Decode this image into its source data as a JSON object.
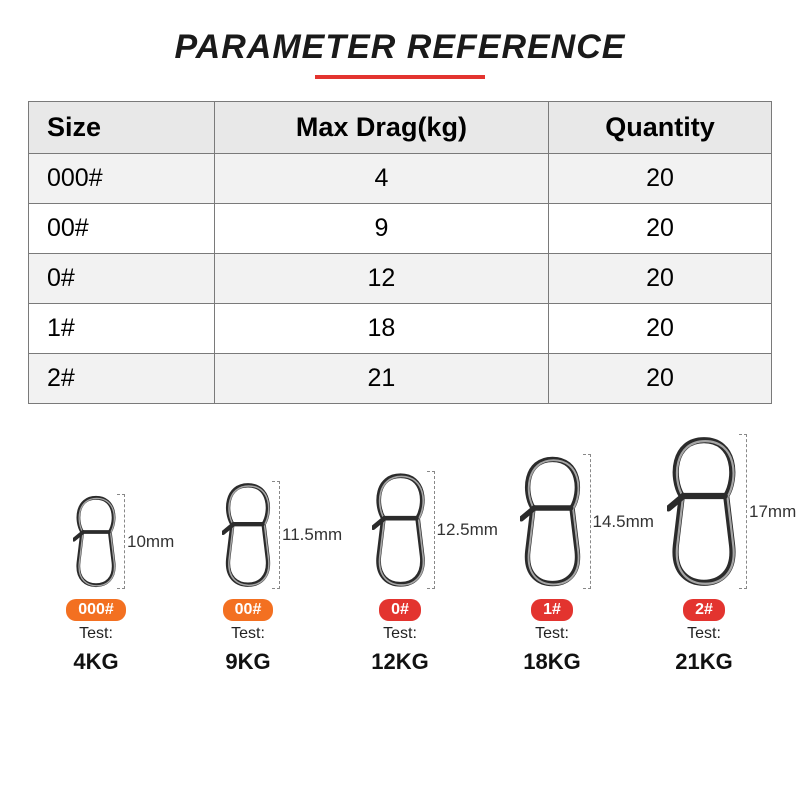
{
  "title": {
    "text": "PARAMETER REFERENCE",
    "fontSize": 34,
    "color": "#1a1a1a",
    "underlineColor": "#e3342f",
    "underlineWidth": 170
  },
  "table": {
    "headerBg": "#e8e8e8",
    "rowAltBg": "#f2f2f2",
    "rowBg": "#ffffff",
    "borderColor": "#7a7a7a",
    "headerFontSize": 27,
    "cellFontSize": 25,
    "columns": [
      "Size",
      "Max Drag(kg)",
      "Quantity"
    ],
    "rows": [
      {
        "size": "000#",
        "drag": "4",
        "qty": "20"
      },
      {
        "size": "00#",
        "drag": "9",
        "qty": "20"
      },
      {
        "size": "0#",
        "drag": "12",
        "qty": "20"
      },
      {
        "size": "1#",
        "drag": "18",
        "qty": "20"
      },
      {
        "size": "2#",
        "drag": "21",
        "qty": "20"
      }
    ]
  },
  "products": {
    "testLabel": "Test:",
    "snapColor": "#2b2b2b",
    "snapHighlight": "#dcdcdc",
    "dimColor": "#888888",
    "items": [
      {
        "badge": "000#",
        "badgeColor": "#f37021",
        "length": "10mm",
        "heightPx": 95,
        "test": "4KG"
      },
      {
        "badge": "00#",
        "badgeColor": "#f37021",
        "length": "11.5mm",
        "heightPx": 108,
        "test": "9KG"
      },
      {
        "badge": "0#",
        "badgeColor": "#e3342f",
        "length": "12.5mm",
        "heightPx": 118,
        "test": "12KG"
      },
      {
        "badge": "1#",
        "badgeColor": "#e3342f",
        "length": "14.5mm",
        "heightPx": 135,
        "test": "18KG"
      },
      {
        "badge": "2#",
        "badgeColor": "#e3342f",
        "length": "17mm",
        "heightPx": 155,
        "test": "21KG"
      }
    ]
  }
}
